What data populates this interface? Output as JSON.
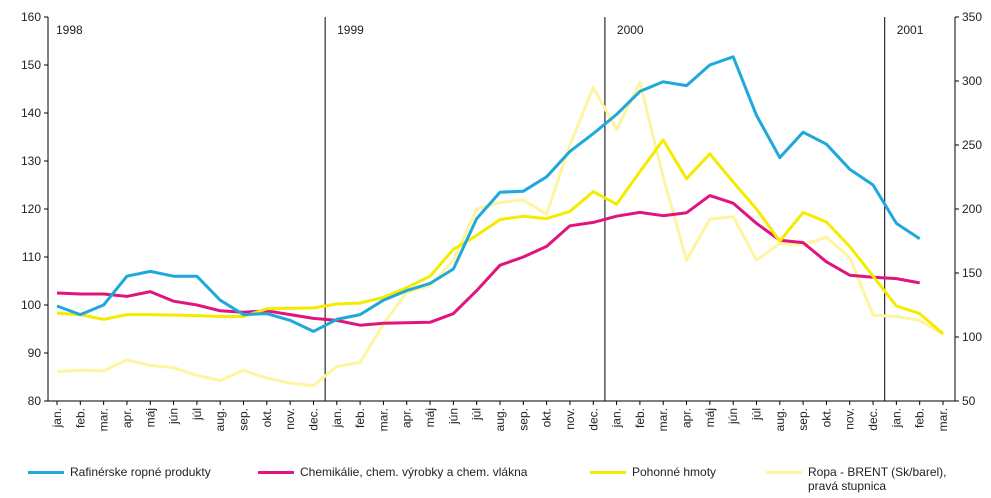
{
  "chart_data": {
    "type": "line",
    "categories": [
      "jan.",
      "feb.",
      "mar.",
      "apr.",
      "máj",
      "jún",
      "júl",
      "aug.",
      "sep.",
      "okt.",
      "nov.",
      "dec.",
      "jan.",
      "feb.",
      "mar.",
      "apr.",
      "máj",
      "jún",
      "júl",
      "aug.",
      "sep.",
      "okt.",
      "nov.",
      "dec.",
      "jan.",
      "feb.",
      "mar.",
      "apr.",
      "máj",
      "jún",
      "júl",
      "aug.",
      "sep.",
      "okt.",
      "nov.",
      "dec.",
      "jan.",
      "feb.",
      "mar."
    ],
    "year_labels": [
      "1998",
      "1999",
      "2000",
      "2001"
    ],
    "ylim": [
      80,
      160
    ],
    "yticks": [
      80,
      90,
      100,
      110,
      120,
      130,
      140,
      150,
      160
    ],
    "y2lim": [
      50,
      350
    ],
    "y2ticks": [
      50,
      100,
      150,
      200,
      250,
      300,
      350
    ],
    "series": [
      {
        "name": "Rafinérske ropné produkty",
        "color": "#1ea8dc",
        "values": [
          99.8,
          98,
          100,
          106,
          107,
          106,
          106,
          101,
          98,
          98.2,
          96.8,
          94.5,
          97,
          98,
          101,
          103,
          104.5,
          107.5,
          118,
          123.5,
          123.7,
          126.7,
          132,
          135.7,
          139.7,
          144.5,
          146.5,
          145.7,
          150,
          151.7,
          139.5,
          130.7,
          136,
          133.5,
          128.3,
          125,
          117,
          113.8,
          null
        ]
      },
      {
        "name": "Chemikálie, chem. výrobky a chem. vlákna",
        "color": "#e0147f",
        "values": [
          102.5,
          102.3,
          102.3,
          101.8,
          102.8,
          100.8,
          100,
          98.8,
          98.5,
          98.8,
          98,
          97.2,
          96.8,
          95.8,
          96.2,
          96.3,
          96.4,
          98.2,
          103,
          108.3,
          110,
          112.2,
          116.5,
          117.2,
          118.5,
          119.3,
          118.6,
          119.2,
          122.8,
          121.2,
          117,
          113.5,
          113,
          109,
          106.2,
          105.8,
          105.5,
          104.6,
          null
        ]
      },
      {
        "name": "Pohonné hmoty",
        "color": "#f5eb00",
        "values": [
          98.3,
          98,
          97,
          98,
          98,
          97.9,
          97.8,
          97.6,
          97.6,
          99.2,
          99.3,
          99.4,
          100.2,
          100.4,
          101.6,
          103.6,
          106,
          111.6,
          114.5,
          117.8,
          118.5,
          118,
          119.5,
          123.6,
          121,
          127.8,
          134.4,
          126.3,
          131.5,
          125.6,
          120,
          113.3,
          119.3,
          117.3,
          112.2,
          106,
          99.8,
          98.2,
          94
        ]
      },
      {
        "name": "Ropa - BRENT (Sk/barel), pravá stupnica",
        "color": "#fff4a0",
        "axis": "y2",
        "values": [
          73,
          74,
          73.5,
          82,
          78,
          76,
          70,
          66,
          74,
          68,
          64,
          62,
          77,
          80,
          110,
          135,
          140,
          160,
          200,
          205,
          207,
          196,
          250,
          295,
          262,
          299,
          225,
          160,
          192,
          194,
          160,
          173,
          172,
          178,
          162,
          117,
          116,
          113,
          102
        ]
      }
    ]
  }
}
